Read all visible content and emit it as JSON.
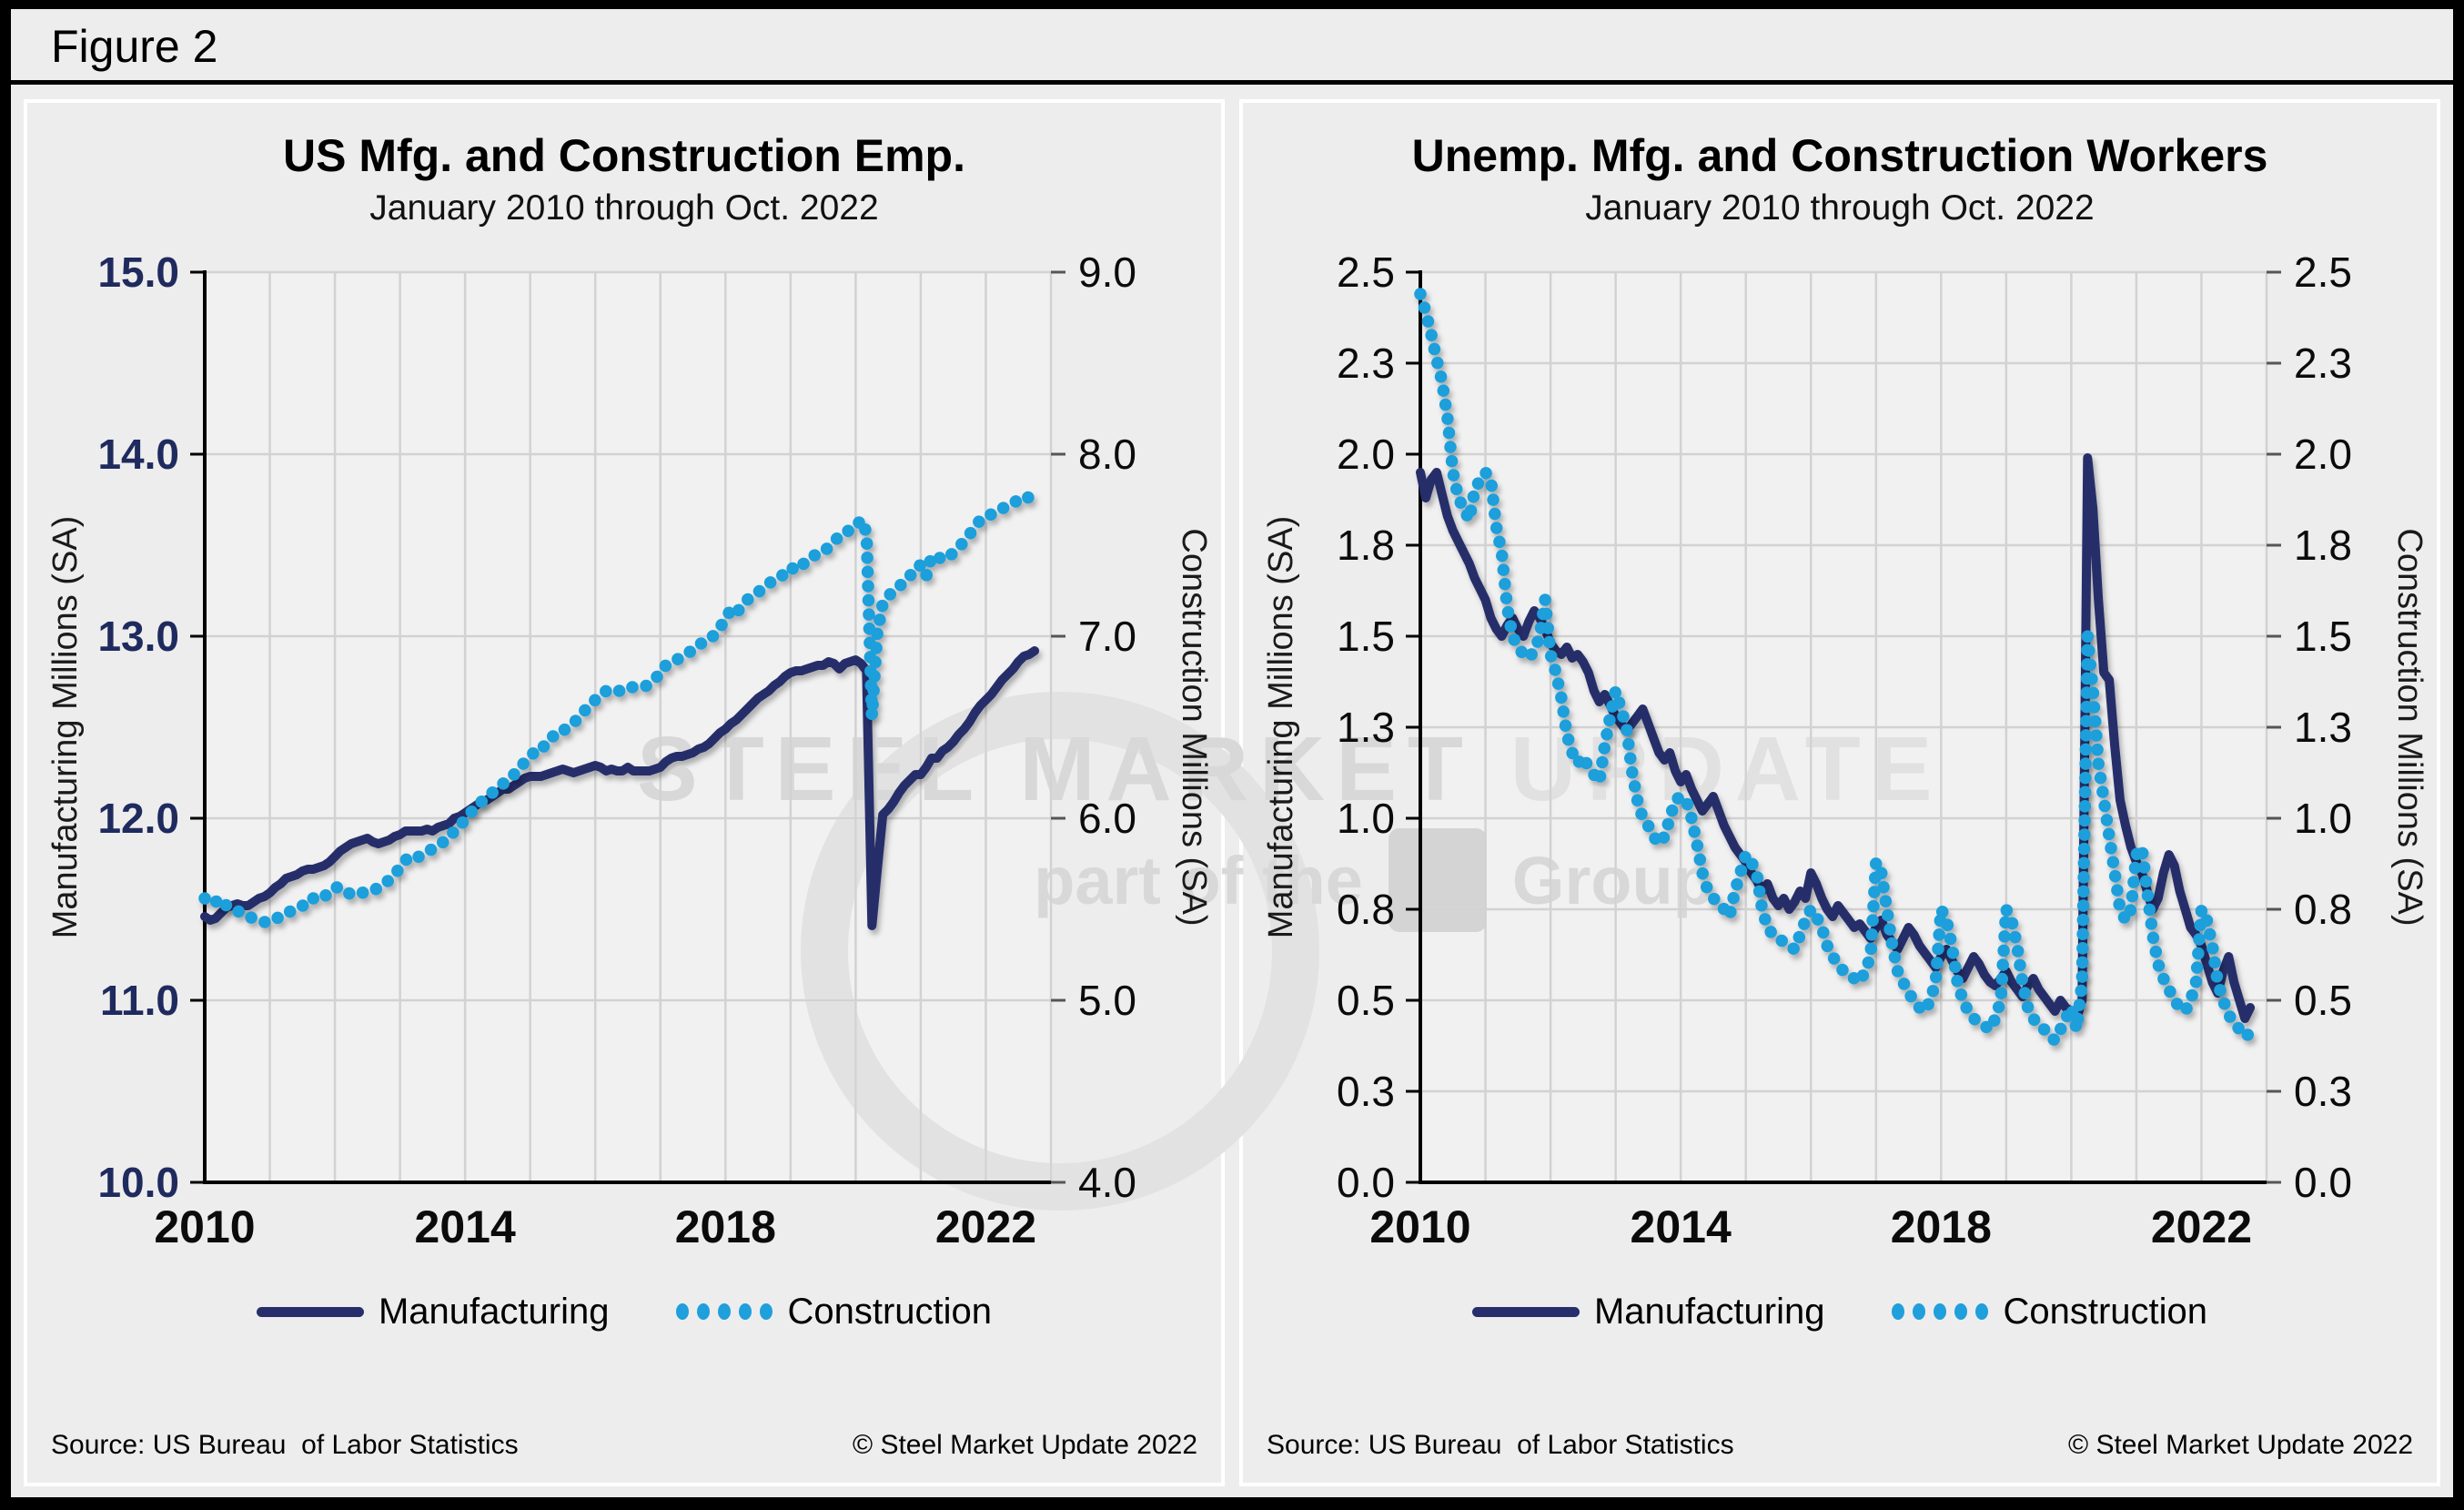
{
  "figure_label": "Figure 2",
  "watermark": {
    "brand": "STEEL MARKET",
    "brand2": "UPDATE",
    "tagline_pre": "part of the",
    "tagline_post": "Group"
  },
  "colors": {
    "navy": "#262f6b",
    "sky_blue": "#1f9fdb",
    "grid": "#d2d2d2",
    "plot_bg": "#f1f1f1",
    "panel_bg": "#ededed"
  },
  "chart_data": [
    {
      "id": "emp",
      "type": "line",
      "title": "US Mfg. and Construction Emp.",
      "subtitle": "January 2010 through Oct. 2022",
      "source": "Source: US Bureau  of Labor Statistics",
      "copyright": "© Steel Market Update 2022",
      "legend": [
        {
          "label": "Manufacturing",
          "swatch": "line",
          "color": "#262f6b"
        },
        {
          "label": "Construction",
          "swatch": "dots",
          "color": "#1f9fdb"
        }
      ],
      "plot_bg": "#f1f1f1",
      "grid_color": "#d2d2d2",
      "x_axis": {
        "min": 2010,
        "max": 2023,
        "grid_start": 2010,
        "grid_end": 2023,
        "tick_years": [
          2010,
          2014,
          2018,
          2022
        ],
        "start_year": 2010,
        "points_per_year": 12
      },
      "left_axis": {
        "title": "Manufacturing Millions (SA)",
        "min": 10,
        "max": 15,
        "tick_values": [
          15,
          14,
          13,
          12,
          11,
          10
        ],
        "tick_labels": [
          "15.0",
          "14.0",
          "13.0",
          "12.0",
          "11.0",
          "10.0"
        ],
        "label_color": "#1f2a5e",
        "label_bold": true
      },
      "right_axis": {
        "title": "Construction Millions (SA)",
        "min": 4,
        "max": 9,
        "tick_values": [
          9,
          8,
          7,
          6,
          5,
          4
        ],
        "tick_labels": [
          "9.0",
          "8.0",
          "7.0",
          "6.0",
          "5.0",
          "4.0"
        ],
        "label_color": "#0b0b0b",
        "label_bold": false
      },
      "series": [
        {
          "name": "Manufacturing",
          "axis": "left",
          "style": "line",
          "color": "#262f6b",
          "values": [
            11.46,
            11.44,
            11.45,
            11.48,
            11.51,
            11.52,
            11.53,
            11.52,
            11.52,
            11.54,
            11.56,
            11.57,
            11.59,
            11.62,
            11.64,
            11.67,
            11.68,
            11.69,
            11.71,
            11.72,
            11.72,
            11.73,
            11.74,
            11.76,
            11.79,
            11.82,
            11.84,
            11.86,
            11.87,
            11.88,
            11.89,
            11.87,
            11.86,
            11.87,
            11.88,
            11.9,
            11.91,
            11.93,
            11.93,
            11.93,
            11.93,
            11.94,
            11.93,
            11.95,
            11.96,
            11.97,
            12.0,
            12.01,
            12.03,
            12.05,
            12.07,
            12.09,
            12.1,
            12.12,
            12.14,
            12.16,
            12.16,
            12.18,
            12.2,
            12.22,
            12.23,
            12.23,
            12.23,
            12.24,
            12.25,
            12.26,
            12.27,
            12.26,
            12.25,
            12.26,
            12.27,
            12.28,
            12.29,
            12.28,
            12.26,
            12.27,
            12.26,
            12.26,
            12.28,
            12.26,
            12.26,
            12.26,
            12.26,
            12.27,
            12.28,
            12.31,
            12.33,
            12.34,
            12.34,
            12.35,
            12.36,
            12.38,
            12.39,
            12.41,
            12.44,
            12.47,
            12.49,
            12.52,
            12.54,
            12.57,
            12.6,
            12.63,
            12.66,
            12.68,
            12.7,
            12.73,
            12.75,
            12.78,
            12.8,
            12.81,
            12.81,
            12.82,
            12.83,
            12.84,
            12.84,
            12.86,
            12.85,
            12.82,
            12.85,
            12.86,
            12.87,
            12.85,
            12.81,
            11.41,
            11.72,
            12.02,
            12.05,
            12.09,
            12.14,
            12.18,
            12.21,
            12.24,
            12.24,
            12.28,
            12.33,
            12.33,
            12.37,
            12.39,
            12.42,
            12.46,
            12.49,
            12.53,
            12.58,
            12.62,
            12.65,
            12.68,
            12.72,
            12.76,
            12.79,
            12.82,
            12.86,
            12.89,
            12.9,
            12.92
          ]
        },
        {
          "name": "Construction",
          "axis": "right",
          "style": "dots",
          "color": "#1f9fdb",
          "values": [
            5.56,
            5.53,
            5.54,
            5.56,
            5.52,
            5.5,
            5.49,
            5.48,
            5.46,
            5.45,
            5.44,
            5.43,
            5.43,
            5.44,
            5.47,
            5.48,
            5.49,
            5.5,
            5.52,
            5.52,
            5.56,
            5.55,
            5.57,
            5.59,
            5.62,
            5.62,
            5.6,
            5.58,
            5.58,
            5.59,
            5.6,
            5.6,
            5.62,
            5.64,
            5.66,
            5.69,
            5.73,
            5.77,
            5.79,
            5.78,
            5.8,
            5.82,
            5.83,
            5.85,
            5.87,
            5.89,
            5.93,
            5.95,
            6.0,
            6.03,
            6.06,
            6.09,
            6.12,
            6.14,
            6.17,
            6.19,
            6.21,
            6.24,
            6.27,
            6.31,
            6.34,
            6.37,
            6.37,
            6.42,
            6.45,
            6.45,
            6.48,
            6.5,
            6.52,
            6.56,
            6.59,
            6.62,
            6.65,
            6.67,
            6.7,
            6.71,
            6.7,
            6.7,
            6.72,
            6.72,
            6.72,
            6.72,
            6.74,
            6.77,
            6.79,
            6.84,
            6.86,
            6.87,
            6.89,
            6.91,
            6.92,
            6.95,
            6.97,
            6.98,
            7.01,
            7.05,
            7.09,
            7.15,
            7.13,
            7.16,
            7.2,
            7.22,
            7.24,
            7.27,
            7.29,
            7.31,
            7.32,
            7.35,
            7.38,
            7.36,
            7.39,
            7.41,
            7.44,
            7.45,
            7.46,
            7.49,
            7.52,
            7.55,
            7.56,
            7.59,
            7.6,
            7.64,
            7.57,
            6.56,
            7.02,
            7.18,
            7.22,
            7.25,
            7.27,
            7.31,
            7.33,
            7.38,
            7.39,
            7.33,
            7.44,
            7.44,
            7.42,
            7.43,
            7.46,
            7.49,
            7.52,
            7.56,
            7.6,
            7.64,
            7.65,
            7.67,
            7.69,
            7.7,
            7.72,
            7.73,
            7.75,
            7.77,
            7.76,
            7.72
          ]
        }
      ]
    },
    {
      "id": "unemp",
      "type": "line",
      "title": "Unemp. Mfg. and Construction Workers",
      "subtitle": "January 2010 through Oct. 2022",
      "source": "Source: US Bureau  of Labor Statistics",
      "copyright": "© Steel Market Update 2022",
      "legend": [
        {
          "label": "Manufacturing",
          "swatch": "line",
          "color": "#262f6b"
        },
        {
          "label": "Construction",
          "swatch": "dots",
          "color": "#1f9fdb"
        }
      ],
      "plot_bg": "#f1f1f1",
      "grid_color": "#d2d2d2",
      "x_axis": {
        "min": 2010,
        "max": 2023,
        "grid_start": 2010,
        "grid_end": 2023,
        "tick_years": [
          2010,
          2014,
          2018,
          2022
        ],
        "start_year": 2010,
        "points_per_year": 12
      },
      "left_axis": {
        "title": "Manufacturing Millions (SA)",
        "min": 0,
        "max": 2.5,
        "tick_values": [
          2.5,
          2.25,
          2.0,
          1.75,
          1.5,
          1.25,
          1.0,
          0.75,
          0.5,
          0.25,
          0.0
        ],
        "tick_labels": [
          "2.5",
          "2.3",
          "2.0",
          "1.8",
          "1.5",
          "1.3",
          "1.0",
          "0.8",
          "0.5",
          "0.3",
          "0.0"
        ],
        "label_color": "#0b0b0b",
        "label_bold": false
      },
      "right_axis": {
        "title": "Construction Millions (SA)",
        "min": 0,
        "max": 2.5,
        "tick_values": [
          2.5,
          2.25,
          2.0,
          1.75,
          1.5,
          1.25,
          1.0,
          0.75,
          0.5,
          0.25,
          0.0
        ],
        "tick_labels": [
          "2.5",
          "2.3",
          "2.0",
          "1.8",
          "1.5",
          "1.3",
          "1.0",
          "0.8",
          "0.5",
          "0.3",
          "0.0"
        ],
        "label_color": "#0b0b0b",
        "label_bold": false
      },
      "series": [
        {
          "name": "Manufacturing",
          "axis": "left",
          "style": "line",
          "color": "#262f6b",
          "values": [
            1.95,
            1.88,
            1.93,
            1.95,
            1.89,
            1.83,
            1.79,
            1.76,
            1.73,
            1.7,
            1.66,
            1.63,
            1.6,
            1.55,
            1.52,
            1.5,
            1.53,
            1.55,
            1.52,
            1.5,
            1.54,
            1.57,
            1.55,
            1.52,
            1.48,
            1.46,
            1.45,
            1.47,
            1.44,
            1.45,
            1.43,
            1.4,
            1.35,
            1.32,
            1.34,
            1.31,
            1.28,
            1.26,
            1.24,
            1.26,
            1.28,
            1.3,
            1.26,
            1.22,
            1.18,
            1.16,
            1.18,
            1.13,
            1.1,
            1.12,
            1.08,
            1.05,
            1.02,
            1.04,
            1.06,
            1.02,
            0.98,
            0.95,
            0.92,
            0.9,
            0.88,
            0.85,
            0.83,
            0.8,
            0.82,
            0.78,
            0.76,
            0.78,
            0.75,
            0.77,
            0.8,
            0.78,
            0.85,
            0.82,
            0.78,
            0.75,
            0.73,
            0.76,
            0.74,
            0.72,
            0.7,
            0.71,
            0.69,
            0.67,
            0.7,
            0.72,
            0.68,
            0.66,
            0.64,
            0.67,
            0.7,
            0.68,
            0.65,
            0.63,
            0.61,
            0.59,
            0.62,
            0.64,
            0.61,
            0.58,
            0.56,
            0.59,
            0.62,
            0.6,
            0.57,
            0.55,
            0.54,
            0.56,
            0.58,
            0.55,
            0.53,
            0.51,
            0.54,
            0.56,
            0.53,
            0.51,
            0.49,
            0.47,
            0.5,
            0.48,
            0.47,
            0.45,
            0.5,
            1.99,
            1.85,
            1.6,
            1.4,
            1.38,
            1.2,
            1.05,
            0.98,
            0.92,
            0.88,
            0.85,
            0.8,
            0.75,
            0.78,
            0.85,
            0.9,
            0.87,
            0.8,
            0.75,
            0.7,
            0.68,
            0.65,
            0.6,
            0.55,
            0.52,
            0.58,
            0.62,
            0.55,
            0.5,
            0.45,
            0.48
          ]
        },
        {
          "name": "Construction",
          "axis": "right",
          "style": "dots",
          "color": "#1f9fdb",
          "values": [
            2.44,
            2.39,
            2.33,
            2.26,
            2.2,
            2.1,
            1.95,
            1.88,
            1.85,
            1.82,
            1.9,
            1.93,
            1.95,
            1.93,
            1.8,
            1.73,
            1.58,
            1.5,
            1.47,
            1.45,
            1.44,
            1.46,
            1.5,
            1.6,
            1.45,
            1.4,
            1.33,
            1.23,
            1.18,
            1.15,
            1.17,
            1.14,
            1.12,
            1.1,
            1.2,
            1.28,
            1.35,
            1.3,
            1.25,
            1.13,
            1.05,
            1.0,
            0.98,
            0.95,
            0.93,
            0.95,
            1.0,
            1.05,
            1.06,
            1.05,
            1.0,
            0.93,
            0.85,
            0.8,
            0.78,
            0.77,
            0.75,
            0.73,
            0.8,
            0.85,
            0.9,
            0.88,
            0.85,
            0.75,
            0.7,
            0.68,
            0.67,
            0.66,
            0.65,
            0.64,
            0.68,
            0.72,
            0.75,
            0.73,
            0.7,
            0.65,
            0.62,
            0.6,
            0.58,
            0.57,
            0.56,
            0.55,
            0.58,
            0.62,
            0.88,
            0.85,
            0.75,
            0.65,
            0.58,
            0.55,
            0.52,
            0.5,
            0.48,
            0.47,
            0.5,
            0.55,
            0.75,
            0.72,
            0.65,
            0.55,
            0.5,
            0.47,
            0.45,
            0.44,
            0.43,
            0.42,
            0.45,
            0.5,
            0.75,
            0.72,
            0.65,
            0.55,
            0.48,
            0.45,
            0.43,
            0.42,
            0.4,
            0.39,
            0.42,
            0.45,
            0.48,
            0.42,
            0.55,
            1.5,
            1.35,
            1.15,
            1.05,
            0.95,
            0.85,
            0.75,
            0.72,
            0.75,
            0.9,
            0.92,
            0.8,
            0.68,
            0.6,
            0.56,
            0.53,
            0.5,
            0.48,
            0.47,
            0.5,
            0.55,
            0.75,
            0.72,
            0.65,
            0.55,
            0.5,
            0.46,
            0.44,
            0.42,
            0.4,
            0.41
          ]
        }
      ]
    }
  ]
}
